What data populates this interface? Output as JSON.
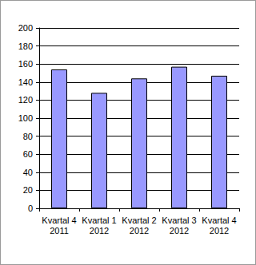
{
  "chart_data": {
    "type": "bar",
    "categories": [
      "Kvartal 4\n2011",
      "Kvartal 1\n2012",
      "Kvartal 2\n2012",
      "Kvartal 3\n2012",
      "Kvartal 4\n2012"
    ],
    "values": [
      154,
      128,
      144,
      157,
      147
    ],
    "color": "#9999ff",
    "ylim": [
      0,
      200
    ],
    "yticks": [
      0,
      20,
      40,
      60,
      80,
      100,
      120,
      140,
      160,
      180,
      200
    ],
    "grid": true
  }
}
